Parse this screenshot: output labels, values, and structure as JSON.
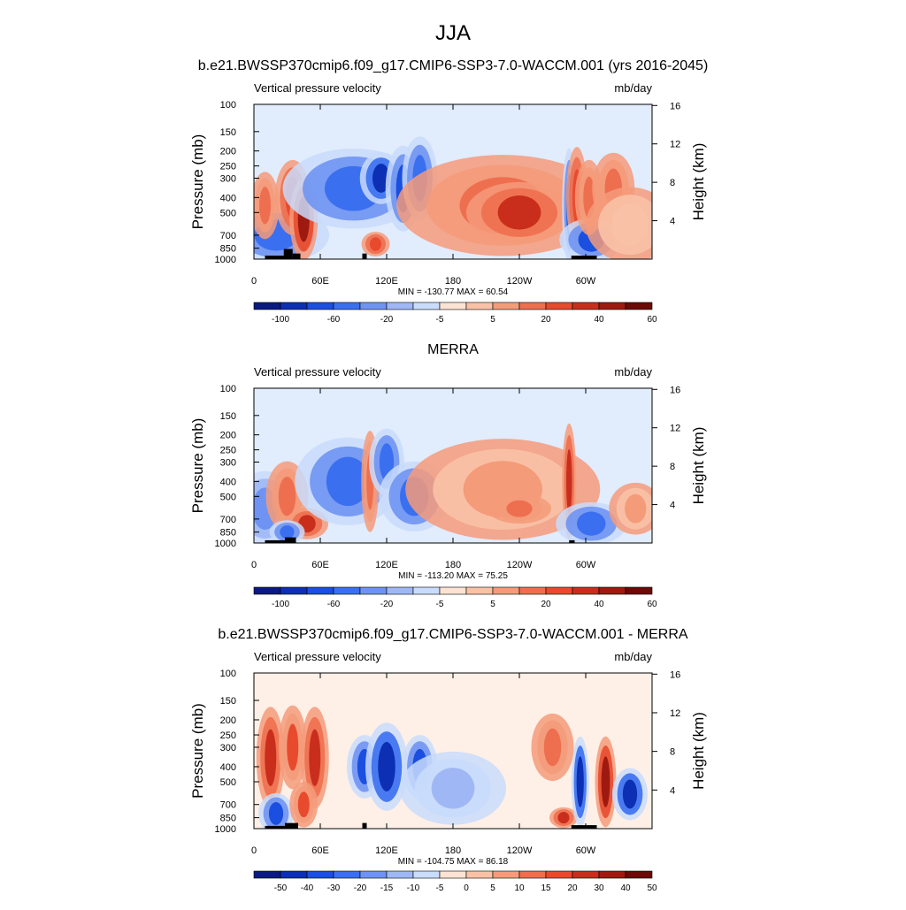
{
  "figure": {
    "main_title": "JJA",
    "colors": {
      "main_scale": [
        "#0a1a80",
        "#0c2fb3",
        "#1a4fe0",
        "#3a6ff0",
        "#6f93f2",
        "#9fb8f5",
        "#c9dcfb",
        "#fde3d3",
        "#f9c2a6",
        "#f49b7a",
        "#ee6f4f",
        "#e84a2e",
        "#c92e1c",
        "#9e1a10",
        "#6b0a06"
      ],
      "diff_scale": [
        "#0a1a80",
        "#0c2fb3",
        "#1a4fe0",
        "#3a6ff0",
        "#6f93f2",
        "#9fb8f5",
        "#c9dcfb",
        "#fde3d3",
        "#f9c2a6",
        "#f49b7a",
        "#ee6f4f",
        "#e84a2e",
        "#c92e1c",
        "#9e1a10",
        "#6b0a06"
      ]
    }
  },
  "chart_data": [
    {
      "type": "heatmap",
      "title": "b.e21.BWSSP370cmip6.f09_g17.CMIP6-SSP3-7.0-WACCM.001 (yrs 2016-2045)",
      "left_string": "Vertical pressure velocity",
      "right_string": "mb/day",
      "ylabel": "Pressure (mb)",
      "ylabel_right": "Height (km)",
      "x_ticks": [
        "0",
        "60E",
        "120E",
        "180",
        "120W",
        "60W"
      ],
      "y_ticks": [
        "100",
        "150",
        "200",
        "250",
        "300",
        "400",
        "500",
        "700",
        "850",
        "1000"
      ],
      "y_ticks_right": [
        "16",
        "12",
        "8",
        "4"
      ],
      "stats": "MIN = -130.77  MAX =  60.54",
      "colorbar_labels": [
        "-100",
        "-60",
        "-20",
        "-5",
        "5",
        "20",
        "40",
        "60"
      ],
      "field": [
        {
          "lon": 20,
          "p": 700,
          "w": 30,
          "h": 380,
          "v": -40
        },
        {
          "lon": 35,
          "p": 400,
          "w": 10,
          "h": 300,
          "v": 30
        },
        {
          "lon": 45,
          "p": 550,
          "w": 8,
          "h": 450,
          "v": 50
        },
        {
          "lon": 10,
          "p": 450,
          "w": 8,
          "h": 300,
          "v": 20
        },
        {
          "lon": 90,
          "p": 350,
          "w": 40,
          "h": 280,
          "v": -40
        },
        {
          "lon": 115,
          "p": 300,
          "w": 12,
          "h": 150,
          "v": -80
        },
        {
          "lon": 135,
          "p": 350,
          "w": 10,
          "h": 300,
          "v": -60
        },
        {
          "lon": 150,
          "p": 300,
          "w": 10,
          "h": 250,
          "v": -50
        },
        {
          "lon": 110,
          "p": 800,
          "w": 8,
          "h": 150,
          "v": 30
        },
        {
          "lon": 225,
          "p": 450,
          "w": 60,
          "h": 450,
          "v": 20
        },
        {
          "lon": 240,
          "p": 500,
          "w": 30,
          "h": 300,
          "v": 40
        },
        {
          "lon": 285,
          "p": 450,
          "w": 4,
          "h": 500,
          "v": -60
        },
        {
          "lon": 292,
          "p": 400,
          "w": 6,
          "h": 400,
          "v": 30
        },
        {
          "lon": 305,
          "p": 750,
          "w": 18,
          "h": 300,
          "v": -60
        },
        {
          "lon": 303,
          "p": 400,
          "w": 8,
          "h": 300,
          "v": 20
        },
        {
          "lon": 325,
          "p": 350,
          "w": 12,
          "h": 250,
          "v": 20
        },
        {
          "lon": 340,
          "p": 600,
          "w": 25,
          "h": 450,
          "v": 5
        }
      ],
      "topography": [
        {
          "lon0": 10,
          "lon1": 35,
          "p": 950
        },
        {
          "lon0": 27,
          "lon1": 35,
          "p": 860
        },
        {
          "lon0": 35,
          "lon1": 42,
          "p": 920
        },
        {
          "lon0": 98,
          "lon1": 102,
          "p": 920
        },
        {
          "lon0": 287,
          "lon1": 310,
          "p": 950
        }
      ]
    },
    {
      "type": "heatmap",
      "title": "MERRA",
      "left_string": "Vertical pressure velocity",
      "right_string": "mb/day",
      "ylabel": "Pressure (mb)",
      "ylabel_right": "Height (km)",
      "x_ticks": [
        "0",
        "60E",
        "120E",
        "180",
        "120W",
        "60W"
      ],
      "y_ticks": [
        "100",
        "150",
        "200",
        "250",
        "300",
        "400",
        "500",
        "700",
        "850",
        "1000"
      ],
      "y_ticks_right": [
        "16",
        "12",
        "8",
        "4"
      ],
      "stats": "MIN = -113.20  MAX =  75.25",
      "colorbar_labels": [
        "-100",
        "-60",
        "-20",
        "-5",
        "5",
        "20",
        "40",
        "60"
      ],
      "field": [
        {
          "lon": 10,
          "p": 600,
          "w": 18,
          "h": 450,
          "v": -20
        },
        {
          "lon": 30,
          "p": 500,
          "w": 12,
          "h": 350,
          "v": 20
        },
        {
          "lon": 48,
          "p": 750,
          "w": 12,
          "h": 200,
          "v": 40
        },
        {
          "lon": 30,
          "p": 850,
          "w": 10,
          "h": 150,
          "v": -40
        },
        {
          "lon": 85,
          "p": 400,
          "w": 30,
          "h": 350,
          "v": -40
        },
        {
          "lon": 105,
          "p": 400,
          "w": 5,
          "h": 400,
          "v": 20
        },
        {
          "lon": 120,
          "p": 300,
          "w": 10,
          "h": 200,
          "v": -40
        },
        {
          "lon": 145,
          "p": 500,
          "w": 20,
          "h": 350,
          "v": -40
        },
        {
          "lon": 225,
          "p": 450,
          "w": 55,
          "h": 450,
          "v": 10
        },
        {
          "lon": 240,
          "p": 600,
          "w": 18,
          "h": 150,
          "v": 20
        },
        {
          "lon": 285,
          "p": 400,
          "w": 4,
          "h": 450,
          "v": 40
        },
        {
          "lon": 305,
          "p": 750,
          "w": 20,
          "h": 300,
          "v": -40
        },
        {
          "lon": 345,
          "p": 600,
          "w": 15,
          "h": 300,
          "v": 10
        }
      ],
      "topography": [
        {
          "lon0": 10,
          "lon1": 28,
          "p": 960
        },
        {
          "lon0": 28,
          "lon1": 38,
          "p": 920
        },
        {
          "lon0": 285,
          "lon1": 290,
          "p": 960
        }
      ]
    },
    {
      "type": "heatmap",
      "title": "b.e21.BWSSP370cmip6.f09_g17.CMIP6-SSP3-7.0-WACCM.001 - MERRA",
      "left_string": "Vertical pressure velocity",
      "right_string": "mb/day",
      "ylabel": "Pressure (mb)",
      "ylabel_right": "Height (km)",
      "x_ticks": [
        "0",
        "60E",
        "120E",
        "180",
        "120W",
        "60W"
      ],
      "y_ticks": [
        "100",
        "150",
        "200",
        "250",
        "300",
        "400",
        "500",
        "700",
        "850",
        "1000"
      ],
      "y_ticks_right": [
        "16",
        "12",
        "8",
        "4"
      ],
      "stats": "MIN = -104.75  MAX =  86.18",
      "colorbar_labels": [
        "-50",
        "-40",
        "-30",
        "-20",
        "-15",
        "-10",
        "-5",
        "0",
        "5",
        "10",
        "15",
        "20",
        "30",
        "40",
        "50"
      ],
      "field": [
        {
          "lon": 15,
          "p": 350,
          "w": 8,
          "h": 350,
          "v": 30
        },
        {
          "lon": 35,
          "p": 300,
          "w": 8,
          "h": 250,
          "v": 20
        },
        {
          "lon": 55,
          "p": 350,
          "w": 8,
          "h": 350,
          "v": 30
        },
        {
          "lon": 20,
          "p": 800,
          "w": 10,
          "h": 300,
          "v": -30
        },
        {
          "lon": 45,
          "p": 700,
          "w": 8,
          "h": 300,
          "v": 20
        },
        {
          "lon": 100,
          "p": 400,
          "w": 10,
          "h": 250,
          "v": -30
        },
        {
          "lon": 120,
          "p": 400,
          "w": 12,
          "h": 350,
          "v": -40
        },
        {
          "lon": 150,
          "p": 400,
          "w": 10,
          "h": 250,
          "v": -30
        },
        {
          "lon": 180,
          "p": 550,
          "w": 30,
          "h": 400,
          "v": -10
        },
        {
          "lon": 270,
          "p": 300,
          "w": 12,
          "h": 200,
          "v": 15
        },
        {
          "lon": 280,
          "p": 850,
          "w": 8,
          "h": 120,
          "v": 30
        },
        {
          "lon": 295,
          "p": 500,
          "w": 5,
          "h": 450,
          "v": -40
        },
        {
          "lon": 318,
          "p": 500,
          "w": 6,
          "h": 450,
          "v": 40
        },
        {
          "lon": 340,
          "p": 600,
          "w": 10,
          "h": 300,
          "v": -40
        }
      ],
      "topography": [
        {
          "lon0": 10,
          "lon1": 28,
          "p": 960
        },
        {
          "lon0": 28,
          "lon1": 40,
          "p": 920
        },
        {
          "lon0": 98,
          "lon1": 102,
          "p": 920
        },
        {
          "lon0": 287,
          "lon1": 310,
          "p": 950
        }
      ]
    }
  ]
}
